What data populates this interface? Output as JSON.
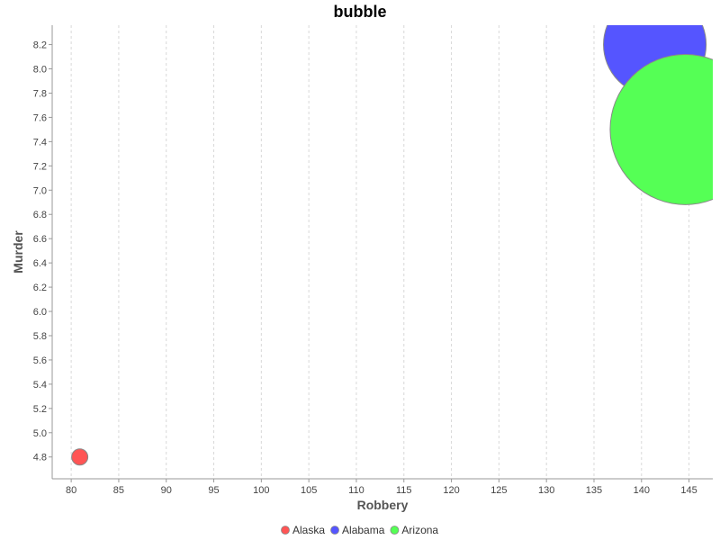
{
  "chart_data": {
    "type": "scatter",
    "title": "bubble",
    "xlabel": "Robbery",
    "ylabel": "Murder",
    "xlim": [
      78,
      147.5
    ],
    "ylim": [
      4.62,
      8.36
    ],
    "x_ticks": [
      80,
      85,
      90,
      95,
      100,
      105,
      110,
      115,
      120,
      125,
      130,
      135,
      140,
      145
    ],
    "x_tick_labels": [
      "80",
      "85",
      "90",
      "95",
      "100",
      "105",
      "110",
      "115",
      "120",
      "125",
      "130",
      "135",
      "140",
      "145"
    ],
    "y_ticks": [
      4.8,
      5.0,
      5.2,
      5.4,
      5.6,
      5.8,
      6.0,
      6.2,
      6.4,
      6.6,
      6.8,
      7.0,
      7.2,
      7.4,
      7.6,
      7.8,
      8.0,
      8.2
    ],
    "y_tick_labels": [
      "4.8",
      "5.0",
      "5.2",
      "5.4",
      "5.6",
      "5.8",
      "6.0",
      "6.2",
      "6.4",
      "6.6",
      "6.8",
      "7.0",
      "7.2",
      "7.4",
      "7.6",
      "7.8",
      "8.0",
      "8.2"
    ],
    "grid": "vertical dashed",
    "legend_position": "bottom",
    "series": [
      {
        "name": "Alaska",
        "x": 80.9,
        "y": 4.8,
        "size": 0.85,
        "color": "#ff5555"
      },
      {
        "name": "Alabama",
        "x": 141.4,
        "y": 8.2,
        "size": 5.4,
        "color": "#5555ff"
      },
      {
        "name": "Arizona",
        "x": 144.6,
        "y": 7.5,
        "size": 7.9,
        "color": "#55ff55"
      }
    ]
  }
}
